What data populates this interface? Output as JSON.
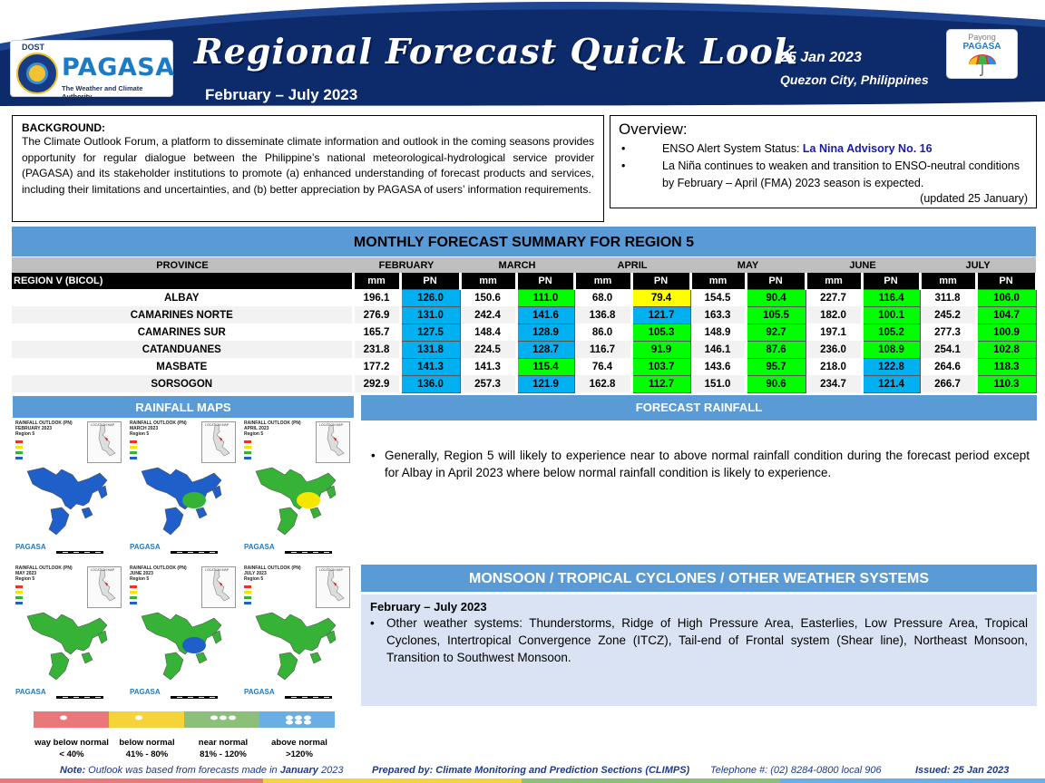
{
  "header": {
    "logo_dost": "DOST",
    "logo_name": "PAGASA",
    "logo_tagline": "The Weather and Climate Authority",
    "title": "Regional Forecast Quick Look",
    "subtitle": "February – July 2023",
    "date": "25 Jan 2023",
    "place": "Quezon City, Philippines",
    "payong_line1": "Payong",
    "payong_line2": "PAGASA",
    "colors": {
      "navy": "#0d2a6b",
      "accent": "#5b9bd5"
    }
  },
  "background": {
    "title": "BACKGROUND:",
    "text": "The Climate Outlook Forum, a platform to disseminate climate information and outlook in the coming seasons provides opportunity for regular dialogue between the Philippine’s national meteorological-hydrological service provider (PAGASA) and its stakeholder institutions to promote (a) enhanced understanding of forecast products and services, including their limitations and uncertainties, and (b) better appreciation by PAGASA of users’ information requirements."
  },
  "overview": {
    "title": "Overview:",
    "enso_label": "ENSO Alert System Status: ",
    "enso_status": "La Nina Advisory No. 16",
    "bullet2": "La Niña continues to weaken and transition to ENSO-neutral conditions by February – April (FMA) 2023  season is expected.",
    "updated": "(updated 25 January)"
  },
  "summary": {
    "title": "MONTHLY FORECAST SUMMARY FOR REGION 5",
    "province_header": "PROVINCE",
    "region_label": "REGION V (BICOL)",
    "months": [
      "FEBRUARY",
      "MARCH",
      "APRIL",
      "MAY",
      "JUNE",
      "JULY"
    ],
    "mm_label": "mm",
    "pn_label": "PN",
    "category_colors": {
      "way_below": "#ff0000",
      "below": "#ffff00",
      "near": "#00ff00",
      "above": "#00b0f0"
    },
    "rows": [
      {
        "province": "ALBAY",
        "cells": [
          [
            "196.1",
            "126.0",
            "above"
          ],
          [
            "150.6",
            "111.0",
            "near"
          ],
          [
            "68.0",
            "79.4",
            "below"
          ],
          [
            "154.5",
            "90.4",
            "near"
          ],
          [
            "227.7",
            "116.4",
            "near"
          ],
          [
            "311.8",
            "106.0",
            "near"
          ]
        ]
      },
      {
        "province": "CAMARINES NORTE",
        "cells": [
          [
            "276.9",
            "131.0",
            "above"
          ],
          [
            "242.4",
            "141.6",
            "above"
          ],
          [
            "136.8",
            "121.7",
            "above"
          ],
          [
            "163.3",
            "105.5",
            "near"
          ],
          [
            "182.0",
            "100.1",
            "near"
          ],
          [
            "245.2",
            "104.7",
            "near"
          ]
        ]
      },
      {
        "province": "CAMARINES SUR",
        "cells": [
          [
            "165.7",
            "127.5",
            "above"
          ],
          [
            "148.4",
            "128.9",
            "above"
          ],
          [
            "86.0",
            "105.3",
            "near"
          ],
          [
            "148.9",
            "92.7",
            "near"
          ],
          [
            "197.1",
            "105.2",
            "near"
          ],
          [
            "277.3",
            "100.9",
            "near"
          ]
        ]
      },
      {
        "province": "CATANDUANES",
        "cells": [
          [
            "231.8",
            "131.8",
            "above"
          ],
          [
            "224.5",
            "128.7",
            "above"
          ],
          [
            "116.7",
            "91.9",
            "near"
          ],
          [
            "146.1",
            "87.6",
            "near"
          ],
          [
            "236.0",
            "108.9",
            "near"
          ],
          [
            "254.1",
            "102.8",
            "near"
          ]
        ]
      },
      {
        "province": "MASBATE",
        "cells": [
          [
            "177.2",
            "141.3",
            "above"
          ],
          [
            "141.3",
            "115.4",
            "near"
          ],
          [
            "76.4",
            "103.7",
            "near"
          ],
          [
            "143.6",
            "95.7",
            "near"
          ],
          [
            "218.0",
            "122.8",
            "above"
          ],
          [
            "264.6",
            "118.3",
            "near"
          ]
        ]
      },
      {
        "province": "SORSOGON",
        "cells": [
          [
            "292.9",
            "136.0",
            "above"
          ],
          [
            "257.3",
            "121.9",
            "above"
          ],
          [
            "162.8",
            "112.7",
            "near"
          ],
          [
            "151.0",
            "90.6",
            "near"
          ],
          [
            "234.7",
            "121.4",
            "above"
          ],
          [
            "266.7",
            "110.3",
            "near"
          ]
        ]
      }
    ]
  },
  "rainfall_maps": {
    "title": "RAINFALL MAPS",
    "maps": [
      {
        "title": "RAINFALL OUTLOOK (PN)\nFEBRUARY 2023\nRegion 5",
        "fill": "#1f5fc9",
        "spot": ""
      },
      {
        "title": "RAINFALL OUTLOOK (PN)\nMARCH 2023\nRegion 5",
        "fill": "#1f5fc9",
        "spot": "#36b336"
      },
      {
        "title": "RAINFALL OUTLOOK (PN)\nAPRIL 2023\nRegion 5",
        "fill": "#36b336",
        "spot": "#f5e600"
      },
      {
        "title": "RAINFALL OUTLOOK (PN)\nMAY 2023\nRegion 5",
        "fill": "#36b336",
        "spot": ""
      },
      {
        "title": "RAINFALL OUTLOOK (PN)\nJUNE 2023\nRegion 5",
        "fill": "#36b336",
        "spot": "#1f5fc9"
      },
      {
        "title": "RAINFALL OUTLOOK (PN)\nJULY 2023\nRegion 5",
        "fill": "#36b336",
        "spot": ""
      }
    ],
    "map_inset_label": "LOCATION MAP",
    "map_brand": "PAGASA",
    "legend": [
      {
        "label": "way below normal",
        "range": "< 40%",
        "color": "#e8787a"
      },
      {
        "label": "below normal",
        "range": "41% -  80%",
        "color": "#f5d33a"
      },
      {
        "label": "near normal",
        "range": "81% - 120%",
        "color": "#8cc07a"
      },
      {
        "label": "above normal",
        "range": ">120%",
        "color": "#6aaee6"
      }
    ]
  },
  "forecast_rainfall": {
    "title": "FORECAST RAINFALL",
    "text": "Generally, Region 5 will likely to experience near to above normal rainfall condition during the forecast period except for Albay in April 2023 where below normal rainfall condition is likely to experience."
  },
  "monsoon": {
    "title": "MONSOON / TROPICAL CYCLONES / OTHER WEATHER SYSTEMS",
    "period": "February – July 2023",
    "text": "Other weather systems: Thunderstorms,  Ridge of High Pressure Area,  Easterlies, Low Pressure Area, Tropical Cyclones, Intertropical Convergence Zone (ITCZ), Tail-end of Frontal system (Shear line), Northeast Monsoon, Transition to Southwest Monsoon."
  },
  "footer": {
    "note_label": "Note:",
    "note_text": " Outlook was based from forecasts made in ",
    "note_month": "January",
    "note_year": " 2023",
    "prepared": "Prepared by: Climate Monitoring and Prediction Sections (CLIMPS)",
    "telephone": "Telephone #: (02) 8284-0800 local 906",
    "issued": "Issued: 25 Jan 2023"
  }
}
